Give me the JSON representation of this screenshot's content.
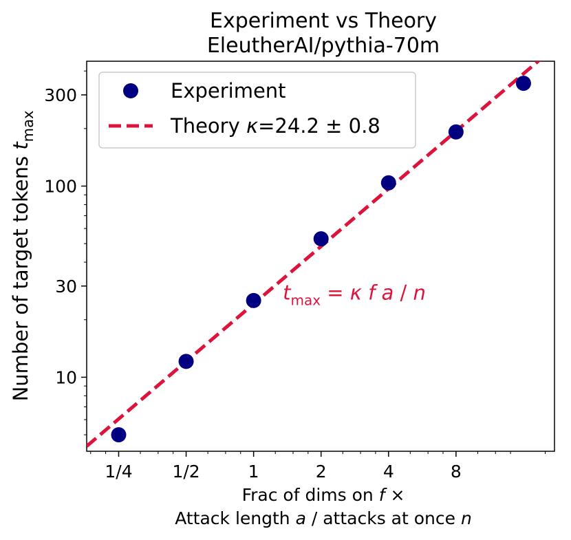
{
  "chart_data": {
    "type": "scatter",
    "title_line1": "Experiment vs Theory",
    "title_line2": "EleutherAI/pythia-70m",
    "xlabel_line1_pre": "Frac of dims on ",
    "xlabel_line1_var": "f",
    "xlabel_line1_post": " ×",
    "xlabel_line2_pre": "Attack length ",
    "xlabel_line2_var_a": "a",
    "xlabel_line2_mid": " / attacks at once ",
    "xlabel_line2_var_n": "n",
    "ylabel_main": "Number of target tokens ",
    "ylabel_var": "t",
    "ylabel_sub": "max",
    "x_scale": "log2",
    "y_scale": "log10",
    "xlim": [
      0.18,
      22
    ],
    "ylim": [
      4.1,
      450
    ],
    "x_ticks": [
      {
        "value": 0.25,
        "label": "1/4"
      },
      {
        "value": 0.5,
        "label": "1/2"
      },
      {
        "value": 1,
        "label": "1"
      },
      {
        "value": 2,
        "label": "2"
      },
      {
        "value": 4,
        "label": "4"
      },
      {
        "value": 8,
        "label": "8"
      }
    ],
    "y_ticks": [
      {
        "value": 10,
        "label": "10"
      },
      {
        "value": 30,
        "label": "30"
      },
      {
        "value": 100,
        "label": "100"
      },
      {
        "value": 300,
        "label": "300"
      }
    ],
    "y_minor_ticks": [
      5,
      6,
      7,
      8,
      9,
      20,
      40,
      50,
      60,
      70,
      80,
      90,
      200,
      400
    ],
    "series": [
      {
        "name": "Experiment",
        "kind": "points",
        "color": "#000080",
        "x": [
          0.25,
          0.5,
          1,
          2,
          4,
          8,
          16
        ],
        "y": [
          5,
          12.1,
          25.2,
          53,
          104,
          192,
          345
        ]
      },
      {
        "name_pre": "Theory ",
        "name_var": "κ",
        "name_post": "=24.2 ± 0.8",
        "kind": "dashed-line",
        "color": "#dc143c",
        "kappa": 24.2
      }
    ],
    "annotation": {
      "var_t": "t",
      "sub": "max",
      "eq": " = ",
      "var_k": "κ",
      "var_f": " f",
      "var_a": " a",
      "slash": " / ",
      "var_n": "n",
      "x": 1.35,
      "y": 25.5,
      "color": "#dc143c"
    },
    "legend_position": "upper-left",
    "grid": false
  }
}
